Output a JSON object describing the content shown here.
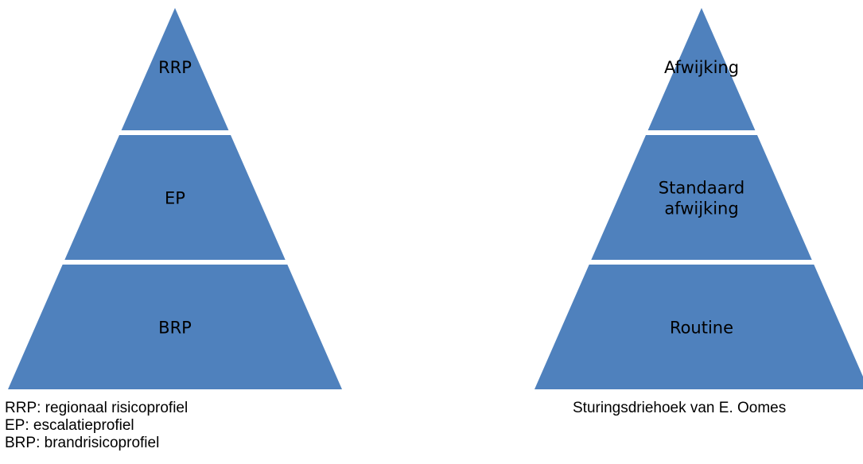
{
  "colors": {
    "layer_fill": "#4f81bd",
    "separator": "#ffffff",
    "text": "#000000"
  },
  "pyramids": [
    {
      "id": "left",
      "layers": [
        {
          "lines": [
            "RRP"
          ]
        },
        {
          "lines": [
            "EP"
          ]
        },
        {
          "lines": [
            "BRP"
          ]
        }
      ]
    },
    {
      "id": "right",
      "layers": [
        {
          "lines": [
            "Afwijking"
          ]
        },
        {
          "lines": [
            "Standaard",
            "afwijking"
          ]
        },
        {
          "lines": [
            "Routine"
          ]
        }
      ]
    }
  ],
  "captions": {
    "left": [
      "RRP: regionaal risicoprofiel",
      "EP: escalatieprofiel",
      "BRP: brandrisicoprofiel"
    ],
    "right": [
      "Sturingsdriehoek van E. Oomes"
    ]
  }
}
